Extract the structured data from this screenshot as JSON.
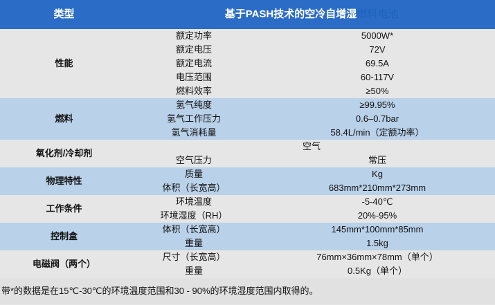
{
  "header": {
    "type_label": "类型",
    "title_main": "基于PASH技术的空冷自增湿",
    "title_highlight": "燃料电池"
  },
  "groups": [
    {
      "category": "性能",
      "shade": "gray",
      "rows": [
        [
          "额定功率",
          "5000W*"
        ],
        [
          "额定电压",
          "72V"
        ],
        [
          "额定电流",
          "69.5A"
        ],
        [
          "电压范围",
          "60-117V"
        ],
        [
          "燃料效率",
          "≥50%"
        ]
      ]
    },
    {
      "category": "燃料",
      "shade": "blue",
      "rows": [
        [
          "氢气纯度",
          "≥99.95%"
        ],
        [
          "氢气工作压力",
          "0.6–0.7bar"
        ],
        [
          "氢气消耗量",
          "58.4L/min（定额功率）"
        ]
      ]
    },
    {
      "category": "氧化剂/冷却剂",
      "shade": "gray",
      "span_text": "空气",
      "rows": [
        [
          "空气压力",
          "常压"
        ]
      ]
    },
    {
      "category": "物理特性",
      "shade": "blue",
      "rows": [
        [
          "质量",
          "Kg"
        ],
        [
          "体积（长宽高）",
          "683mm*210mm*273mm"
        ]
      ]
    },
    {
      "category": "工作条件",
      "shade": "gray",
      "rows": [
        [
          "环境温度",
          "-5-40℃"
        ],
        [
          "环境湿度（RH）",
          "20%-95%"
        ]
      ]
    },
    {
      "category": "控制盒",
      "shade": "blue",
      "rows": [
        [
          "体积（长宽高）",
          "145mm*100mm*85mm"
        ],
        [
          "重量",
          "1.5kg"
        ]
      ]
    },
    {
      "category": "电磁阀（两个）",
      "shade": "gray",
      "rows": [
        [
          "尺寸（长宽高）",
          "76mm×36mm×78mm（单个）"
        ],
        [
          "重量",
          "0.5Kg（单个）"
        ]
      ]
    }
  ],
  "footnote": "带*的数据是在15℃-30℃的环境温度范围和30 - 90%的环境湿度范围内取得的。",
  "colors": {
    "header": "#2b6cc6",
    "highlight": "#1d62bb",
    "row_gray": "#e6e6e6",
    "row_blue": "#b9d1e9"
  }
}
